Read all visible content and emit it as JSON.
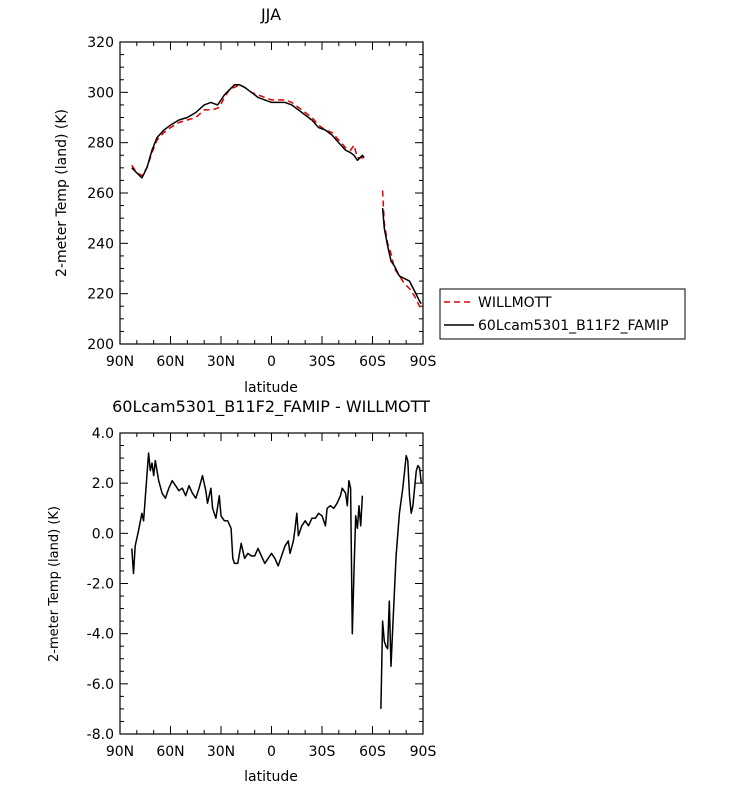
{
  "chart_data": [
    {
      "type": "line",
      "title": "JJA",
      "xlabel": "latitude",
      "ylabel": "2-meter Temp (land) (K)",
      "xlim": [
        90,
        -90
      ],
      "ylim": [
        200,
        320
      ],
      "x_ticks": [
        90,
        60,
        30,
        0,
        -30,
        -60,
        -90
      ],
      "x_tick_labels": [
        "90N",
        "60N",
        "30N",
        "0",
        "30S",
        "60S",
        "90S"
      ],
      "y_ticks": [
        200,
        220,
        240,
        260,
        280,
        300,
        320
      ],
      "y_tick_labels": [
        "200",
        "220",
        "240",
        "260",
        "280",
        "300",
        "320"
      ],
      "legend_position": "right-bottom, outside",
      "series": [
        {
          "name": "WILLMOTT",
          "color": "#dd0000",
          "style": "dashed",
          "segments": [
            [
              [
                83,
                271
              ],
              [
                80,
                268
              ],
              [
                77,
                267
              ],
              [
                74,
                270
              ],
              [
                71,
                276
              ],
              [
                68,
                281
              ],
              [
                64,
                284
              ],
              [
                60,
                286
              ],
              [
                55,
                288
              ],
              [
                50,
                289
              ],
              [
                45,
                290
              ],
              [
                40,
                293
              ],
              [
                35,
                293
              ],
              [
                31,
                294
              ],
              [
                28,
                298
              ],
              [
                25,
                301
              ],
              [
                22,
                302
              ],
              [
                19,
                303
              ],
              [
                16,
                302
              ],
              [
                12,
                300
              ],
              [
                8,
                299
              ],
              [
                4,
                298
              ],
              [
                0,
                297
              ],
              [
                -4,
                297
              ],
              [
                -8,
                297
              ],
              [
                -12,
                296
              ],
              [
                -16,
                294
              ],
              [
                -20,
                292
              ],
              [
                -24,
                290
              ],
              [
                -28,
                287
              ],
              [
                -32,
                285
              ],
              [
                -36,
                284
              ],
              [
                -40,
                281
              ],
              [
                -44,
                278
              ],
              [
                -47,
                277
              ],
              [
                -49,
                279
              ],
              [
                -51,
                274
              ],
              [
                -54,
                274
              ],
              [
                -55,
                274
              ]
            ],
            [
              [
                -66,
                261
              ],
              [
                -67,
                248
              ],
              [
                -69,
                240
              ],
              [
                -71,
                236
              ],
              [
                -73,
                230
              ],
              [
                -76,
                227
              ],
              [
                -79,
                224
              ],
              [
                -82,
                222
              ],
              [
                -85,
                219
              ],
              [
                -88,
                215
              ],
              [
                -89,
                214
              ]
            ]
          ]
        },
        {
          "name": "60Lcam5301_B11F2_FAMIP",
          "color": "#000000",
          "style": "solid",
          "segments": [
            [
              [
                83,
                270
              ],
              [
                80,
                268
              ],
              [
                77,
                266
              ],
              [
                74,
                270
              ],
              [
                71,
                277
              ],
              [
                68,
                282
              ],
              [
                64,
                285
              ],
              [
                60,
                287
              ],
              [
                55,
                289
              ],
              [
                50,
                290
              ],
              [
                45,
                292
              ],
              [
                40,
                295
              ],
              [
                36,
                296
              ],
              [
                32,
                295
              ],
              [
                28,
                299
              ],
              [
                25,
                301
              ],
              [
                22,
                303
              ],
              [
                19,
                303
              ],
              [
                16,
                302
              ],
              [
                12,
                300
              ],
              [
                8,
                298
              ],
              [
                4,
                297
              ],
              [
                0,
                296
              ],
              [
                -4,
                296
              ],
              [
                -8,
                296
              ],
              [
                -12,
                295
              ],
              [
                -16,
                293
              ],
              [
                -20,
                291
              ],
              [
                -24,
                289
              ],
              [
                -28,
                286
              ],
              [
                -32,
                285
              ],
              [
                -36,
                283
              ],
              [
                -40,
                280
              ],
              [
                -44,
                277
              ],
              [
                -47,
                276
              ],
              [
                -49,
                275
              ],
              [
                -51,
                273
              ],
              [
                -54,
                275
              ],
              [
                -55,
                274
              ]
            ],
            [
              [
                -66,
                254
              ],
              [
                -67,
                246
              ],
              [
                -69,
                239
              ],
              [
                -71,
                233
              ],
              [
                -73,
                231
              ],
              [
                -76,
                227
              ],
              [
                -79,
                226
              ],
              [
                -82,
                225
              ],
              [
                -85,
                221
              ],
              [
                -88,
                217
              ],
              [
                -89,
                216
              ]
            ]
          ]
        }
      ]
    },
    {
      "type": "line",
      "title": "60Lcam5301_B11F2_FAMIP - WILLMOTT",
      "xlabel": "latitude",
      "ylabel": "2-meter Temp (land) (K)",
      "xlim": [
        90,
        -90
      ],
      "ylim": [
        -8,
        4
      ],
      "x_ticks": [
        90,
        60,
        30,
        0,
        -30,
        -60,
        -90
      ],
      "x_tick_labels": [
        "90N",
        "60N",
        "30N",
        "0",
        "30S",
        "60S",
        "90S"
      ],
      "y_ticks": [
        -8,
        -6,
        -4,
        -2,
        0,
        2,
        4
      ],
      "y_tick_labels": [
        "-8.0",
        "-6.0",
        "-4.0",
        "-2.0",
        "0.0",
        "2.0",
        "4.0"
      ],
      "series": [
        {
          "name": "",
          "color": "#000000",
          "style": "solid",
          "segments": [
            [
              [
                83,
                -0.6
              ],
              [
                82,
                -1.6
              ],
              [
                81,
                -0.5
              ],
              [
                79,
                0.1
              ],
              [
                77,
                0.8
              ],
              [
                76,
                0.5
              ],
              [
                74,
                2.3
              ],
              [
                73,
                3.2
              ],
              [
                72,
                2.5
              ],
              [
                71,
                2.8
              ],
              [
                70,
                2.3
              ],
              [
                69,
                2.9
              ],
              [
                67,
                2.1
              ],
              [
                65,
                1.6
              ],
              [
                63,
                1.4
              ],
              [
                61,
                1.8
              ],
              [
                59,
                2.1
              ],
              [
                57,
                1.9
              ],
              [
                55,
                1.7
              ],
              [
                53,
                1.8
              ],
              [
                51,
                1.5
              ],
              [
                49,
                1.9
              ],
              [
                47,
                1.6
              ],
              [
                45,
                1.4
              ],
              [
                43,
                1.8
              ],
              [
                41,
                2.3
              ],
              [
                39,
                1.7
              ],
              [
                38,
                1.2
              ],
              [
                36,
                1.8
              ],
              [
                35,
                1.0
              ],
              [
                33,
                0.6
              ],
              [
                31,
                1.5
              ],
              [
                30,
                0.7
              ],
              [
                28,
                0.5
              ],
              [
                26,
                0.5
              ],
              [
                24,
                0.2
              ],
              [
                23,
                -1.0
              ],
              [
                22,
                -1.2
              ],
              [
                20,
                -1.2
              ],
              [
                18,
                -0.4
              ],
              [
                16,
                -1.0
              ],
              [
                14,
                -0.8
              ],
              [
                12,
                -0.9
              ],
              [
                10,
                -0.9
              ],
              [
                8,
                -0.6
              ],
              [
                6,
                -0.9
              ],
              [
                4,
                -1.2
              ],
              [
                2,
                -1.0
              ],
              [
                0,
                -0.8
              ],
              [
                -2,
                -1.0
              ],
              [
                -4,
                -1.3
              ],
              [
                -6,
                -0.9
              ],
              [
                -8,
                -0.5
              ],
              [
                -10,
                -0.3
              ],
              [
                -11,
                -0.8
              ],
              [
                -13,
                -0.3
              ],
              [
                -14,
                0.2
              ],
              [
                -15,
                0.8
              ],
              [
                -16,
                -0.1
              ],
              [
                -18,
                0.3
              ],
              [
                -20,
                0.5
              ],
              [
                -22,
                0.3
              ],
              [
                -24,
                0.6
              ],
              [
                -26,
                0.6
              ],
              [
                -28,
                0.8
              ],
              [
                -30,
                0.7
              ],
              [
                -32,
                0.3
              ],
              [
                -33,
                1.0
              ],
              [
                -35,
                1.1
              ],
              [
                -37,
                1.0
              ],
              [
                -39,
                1.2
              ],
              [
                -41,
                1.5
              ],
              [
                -42,
                1.8
              ],
              [
                -44,
                1.6
              ],
              [
                -45,
                1.1
              ],
              [
                -46,
                2.1
              ],
              [
                -47,
                1.8
              ],
              [
                -48,
                -4.0
              ],
              [
                -49,
                -1.5
              ],
              [
                -50,
                0.7
              ],
              [
                -51,
                0.2
              ],
              [
                -52,
                1.1
              ],
              [
                -53,
                0.3
              ],
              [
                -54,
                1.5
              ]
            ],
            [
              [
                -65,
                -7.0
              ],
              [
                -66,
                -3.5
              ],
              [
                -67,
                -4.3
              ],
              [
                -68,
                -4.5
              ],
              [
                -69,
                -4.6
              ],
              [
                -70,
                -2.7
              ],
              [
                -71,
                -5.3
              ],
              [
                -72,
                -3.8
              ],
              [
                -74,
                -0.9
              ],
              [
                -76,
                0.8
              ],
              [
                -78,
                1.8
              ],
              [
                -80,
                3.1
              ],
              [
                -81,
                2.9
              ],
              [
                -82,
                1.5
              ],
              [
                -83,
                0.8
              ],
              [
                -84,
                1.1
              ],
              [
                -86,
                2.5
              ],
              [
                -87,
                2.7
              ],
              [
                -88,
                2.6
              ],
              [
                -89,
                2.0
              ]
            ]
          ]
        }
      ]
    }
  ]
}
